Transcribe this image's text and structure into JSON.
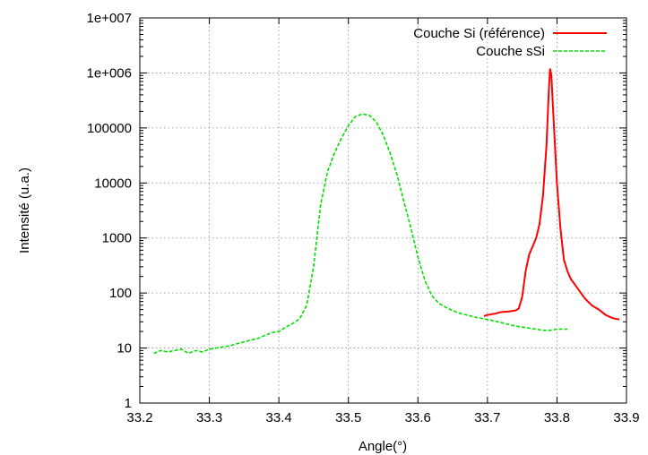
{
  "chart_data": {
    "type": "line",
    "title": "",
    "xlabel": "Angle(°)",
    "ylabel": "Intensité (u.a.)",
    "xlim": [
      33.2,
      33.9
    ],
    "ylim": [
      1,
      10000000
    ],
    "yscale": "log",
    "grid": true,
    "legend_position": "top-right",
    "x_ticks": [
      "33.2",
      "33.3",
      "33.4",
      "33.5",
      "33.6",
      "33.7",
      "33.8",
      "33.9"
    ],
    "y_ticks": [
      "1",
      "10",
      "100",
      "1000",
      "10000",
      "100000",
      "1e+006",
      "1e+007"
    ],
    "series": [
      {
        "name": "Couche Si (référence)",
        "color": "#ff0000",
        "dash": "solid",
        "points": [
          [
            33.695,
            38
          ],
          [
            33.7,
            40
          ],
          [
            33.71,
            42
          ],
          [
            33.72,
            45
          ],
          [
            33.73,
            46
          ],
          [
            33.74,
            48
          ],
          [
            33.745,
            52
          ],
          [
            33.75,
            85
          ],
          [
            33.755,
            250
          ],
          [
            33.76,
            500
          ],
          [
            33.765,
            700
          ],
          [
            33.77,
            1000
          ],
          [
            33.775,
            1800
          ],
          [
            33.78,
            6000
          ],
          [
            33.785,
            50000
          ],
          [
            33.788,
            400000
          ],
          [
            33.79,
            1200000
          ],
          [
            33.792,
            900000
          ],
          [
            33.795,
            150000
          ],
          [
            33.8,
            10000
          ],
          [
            33.805,
            1500
          ],
          [
            33.81,
            400
          ],
          [
            33.815,
            250
          ],
          [
            33.82,
            180
          ],
          [
            33.83,
            120
          ],
          [
            33.84,
            80
          ],
          [
            33.85,
            60
          ],
          [
            33.86,
            50
          ],
          [
            33.87,
            40
          ],
          [
            33.88,
            35
          ],
          [
            33.89,
            33
          ]
        ]
      },
      {
        "name": "Couche sSi",
        "color": "#00e000",
        "dash": "dashed",
        "points": [
          [
            33.22,
            8
          ],
          [
            33.23,
            9
          ],
          [
            33.24,
            8.5
          ],
          [
            33.25,
            9
          ],
          [
            33.26,
            9.5
          ],
          [
            33.27,
            8
          ],
          [
            33.28,
            9
          ],
          [
            33.29,
            8.5
          ],
          [
            33.3,
            9.5
          ],
          [
            33.31,
            10
          ],
          [
            33.32,
            10.5
          ],
          [
            33.33,
            11
          ],
          [
            33.34,
            12
          ],
          [
            33.35,
            13
          ],
          [
            33.36,
            14
          ],
          [
            33.37,
            15
          ],
          [
            33.38,
            17
          ],
          [
            33.39,
            19
          ],
          [
            33.4,
            20
          ],
          [
            33.41,
            24
          ],
          [
            33.42,
            28
          ],
          [
            33.43,
            34
          ],
          [
            33.44,
            60
          ],
          [
            33.45,
            300
          ],
          [
            33.46,
            4000
          ],
          [
            33.47,
            16000
          ],
          [
            33.48,
            35000
          ],
          [
            33.49,
            65000
          ],
          [
            33.5,
            110000
          ],
          [
            33.51,
            160000
          ],
          [
            33.52,
            180000
          ],
          [
            33.53,
            170000
          ],
          [
            33.54,
            130000
          ],
          [
            33.55,
            75000
          ],
          [
            33.56,
            35000
          ],
          [
            33.57,
            14000
          ],
          [
            33.58,
            4500
          ],
          [
            33.59,
            1500
          ],
          [
            33.6,
            450
          ],
          [
            33.61,
            170
          ],
          [
            33.62,
            90
          ],
          [
            33.63,
            65
          ],
          [
            33.64,
            55
          ],
          [
            33.65,
            48
          ],
          [
            33.66,
            43
          ],
          [
            33.67,
            40
          ],
          [
            33.68,
            37
          ],
          [
            33.69,
            35
          ],
          [
            33.7,
            33
          ],
          [
            33.71,
            31
          ],
          [
            33.72,
            29
          ],
          [
            33.73,
            27
          ],
          [
            33.74,
            25
          ],
          [
            33.75,
            24
          ],
          [
            33.76,
            23
          ],
          [
            33.77,
            22
          ],
          [
            33.78,
            21
          ],
          [
            33.79,
            21
          ],
          [
            33.8,
            22
          ],
          [
            33.81,
            22
          ],
          [
            33.815,
            22
          ]
        ]
      }
    ]
  }
}
